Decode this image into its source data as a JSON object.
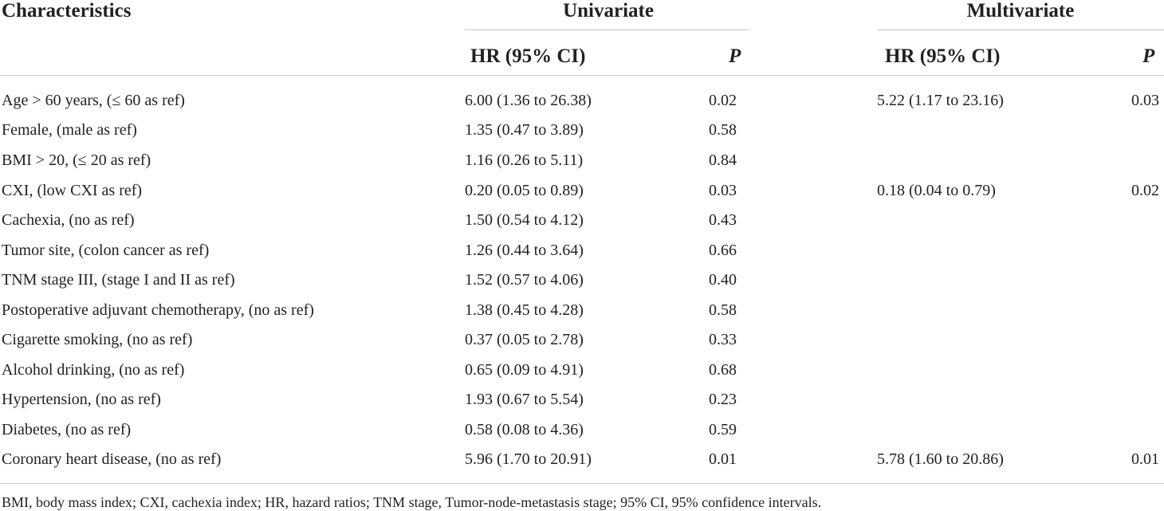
{
  "header": {
    "characteristics": "Characteristics",
    "univariate": "Univariate",
    "multivariate": "Multivariate",
    "hr_label": "HR (95% CI)",
    "p_label": "P"
  },
  "rows": [
    {
      "name": "Age > 60 years, (≤ 60 as ref)",
      "uni_hr": "6.00 (1.36 to 26.38)",
      "uni_p": "0.02",
      "multi_hr": "5.22 (1.17 to 23.16)",
      "multi_p": "0.03"
    },
    {
      "name": "Female, (male as ref)",
      "uni_hr": "1.35 (0.47 to 3.89)",
      "uni_p": "0.58",
      "multi_hr": "",
      "multi_p": ""
    },
    {
      "name": "BMI > 20, (≤ 20 as ref)",
      "uni_hr": "1.16 (0.26 to 5.11)",
      "uni_p": "0.84",
      "multi_hr": "",
      "multi_p": ""
    },
    {
      "name": "CXI, (low CXI as ref)",
      "uni_hr": "0.20 (0.05 to 0.89)",
      "uni_p": "0.03",
      "multi_hr": "0.18 (0.04 to 0.79)",
      "multi_p": "0.02"
    },
    {
      "name": "Cachexia, (no as ref)",
      "uni_hr": "1.50 (0.54 to 4.12)",
      "uni_p": "0.43",
      "multi_hr": "",
      "multi_p": ""
    },
    {
      "name": "Tumor site, (colon cancer as ref)",
      "uni_hr": "1.26 (0.44 to 3.64)",
      "uni_p": "0.66",
      "multi_hr": "",
      "multi_p": ""
    },
    {
      "name": "TNM stage III, (stage I and II as ref)",
      "uni_hr": "1.52 (0.57 to 4.06)",
      "uni_p": "0.40",
      "multi_hr": "",
      "multi_p": ""
    },
    {
      "name": "Postoperative adjuvant chemotherapy, (no as ref)",
      "uni_hr": "1.38 (0.45 to 4.28)",
      "uni_p": "0.58",
      "multi_hr": "",
      "multi_p": ""
    },
    {
      "name": "Cigarette smoking, (no as ref)",
      "uni_hr": "0.37 (0.05 to 2.78)",
      "uni_p": "0.33",
      "multi_hr": "",
      "multi_p": ""
    },
    {
      "name": "Alcohol drinking, (no as ref)",
      "uni_hr": "0.65 (0.09 to 4.91)",
      "uni_p": "0.68",
      "multi_hr": "",
      "multi_p": ""
    },
    {
      "name": "Hypertension, (no as ref)",
      "uni_hr": "1.93 (0.67 to 5.54)",
      "uni_p": "0.23",
      "multi_hr": "",
      "multi_p": ""
    },
    {
      "name": "Diabetes, (no as ref)",
      "uni_hr": "0.58 (0.08 to 4.36)",
      "uni_p": "0.59",
      "multi_hr": "",
      "multi_p": ""
    },
    {
      "name": "Coronary heart disease, (no as ref)",
      "uni_hr": "5.96 (1.70 to 20.91)",
      "uni_p": "0.01",
      "multi_hr": "5.78 (1.60 to 20.86)",
      "multi_p": "0.01"
    }
  ],
  "footnote": "BMI, body mass index; CXI, cachexia index; HR, hazard ratios; TNM stage, Tumor-node-metastasis stage; 95% CI, 95% confidence intervals."
}
